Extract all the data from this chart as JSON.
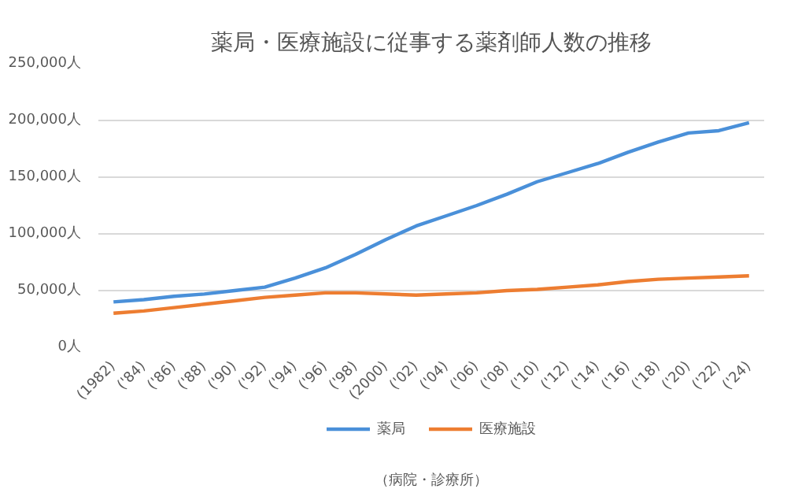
{
  "chart_data": {
    "type": "line",
    "title": "薬局・医療施設に従事する薬剤師人数の推移",
    "categories": [
      "(1982)",
      "('84)",
      "('86)",
      "('88)",
      "('90)",
      "('92)",
      "('94)",
      "('96)",
      "('98)",
      "(2000)",
      "('02)",
      "('04)",
      "('06)",
      "('08)",
      "('10)",
      "('12)",
      "('14)",
      "('16)",
      "('18)",
      "('20)",
      "('22)",
      "('24)"
    ],
    "series": [
      {
        "name": "薬局",
        "color": "#4a90d9",
        "values": [
          40000,
          42000,
          45000,
          47000,
          50000,
          53000,
          61000,
          70000,
          82000,
          95000,
          107000,
          116000,
          125000,
          135000,
          146000,
          154000,
          162000,
          172000,
          181000,
          189000,
          191000,
          198000
        ]
      },
      {
        "name": "医療施設",
        "color": "#ed7d31",
        "values": [
          30000,
          32000,
          35000,
          38000,
          41000,
          44000,
          46000,
          48000,
          48000,
          47000,
          46000,
          47000,
          48000,
          50000,
          51000,
          53000,
          55000,
          58000,
          60000,
          61000,
          62000,
          63000
        ]
      }
    ],
    "ylim": [
      0,
      250000
    ],
    "yticks": [
      {
        "value": 0,
        "label": "0人"
      },
      {
        "value": 50000,
        "label": "50,000人"
      },
      {
        "value": 100000,
        "label": "100,000人"
      },
      {
        "value": 150000,
        "label": "150,000人"
      },
      {
        "value": 200000,
        "label": "200,000人"
      },
      {
        "value": 250000,
        "label": "250,000人"
      }
    ],
    "grid": "y",
    "legend": "bottom",
    "marker": "none",
    "line_style": "solid",
    "annotations": [
      "（病院・診療所）"
    ]
  }
}
